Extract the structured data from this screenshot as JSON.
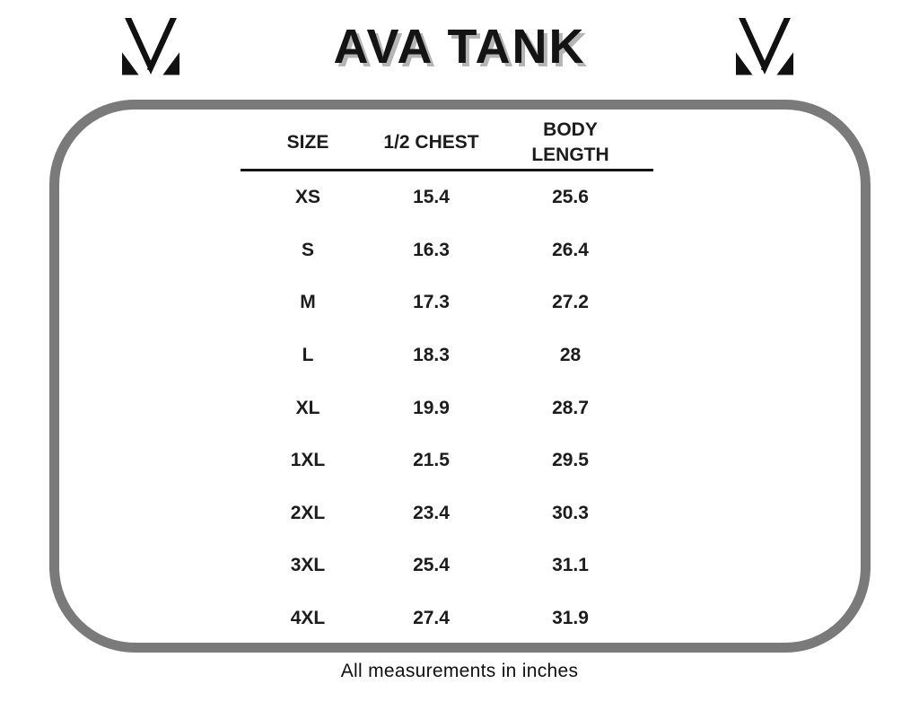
{
  "page": {
    "title": "AVA TANK",
    "note": "All measurements in inches"
  },
  "icons": {
    "left_logo": "mv-monogram-icon",
    "right_logo": "mv-monogram-icon"
  },
  "colors": {
    "text": "#1c1c1c",
    "border_gray": "#7a7a7a",
    "title_shadow": "#b5b5b5"
  },
  "chart_data": {
    "type": "table",
    "title": "AVA TANK",
    "columns": [
      "SIZE",
      "1/2 CHEST",
      "BODY LENGTH"
    ],
    "rows": [
      [
        "XS",
        15.4,
        25.6
      ],
      [
        "S",
        16.3,
        26.4
      ],
      [
        "M",
        17.3,
        27.2
      ],
      [
        "L",
        18.3,
        28
      ],
      [
        "XL",
        19.9,
        28.7
      ],
      [
        "1XL",
        21.5,
        29.5
      ],
      [
        "2XL",
        23.4,
        30.3
      ],
      [
        "3XL",
        25.4,
        31.1
      ],
      [
        "4XL",
        27.4,
        31.9
      ]
    ],
    "note": "All measurements in inches",
    "units": "inches"
  }
}
